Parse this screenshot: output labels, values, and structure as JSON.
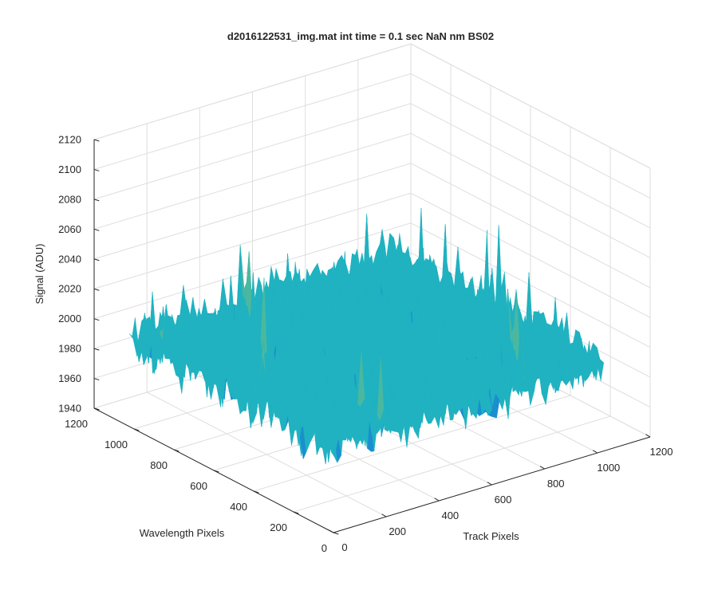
{
  "chart_data": {
    "type": "surface",
    "title": "d2016122531_img.mat int time = 0.1 sec  NaN nm BS02",
    "xlabel": "Track Pixels",
    "ylabel": "Wavelength Pixels",
    "zlabel": "Signal (ADU)",
    "xlim": [
      0,
      1200
    ],
    "ylim": [
      0,
      1200
    ],
    "zlim": [
      1940,
      2120
    ],
    "x_ticks": [
      "0",
      "200",
      "400",
      "600",
      "800",
      "1000",
      "1200"
    ],
    "y_ticks": [
      "0",
      "200",
      "400",
      "600",
      "800",
      "1000",
      "1200"
    ],
    "z_ticks": [
      "1940",
      "1960",
      "1980",
      "2000",
      "2020",
      "2040",
      "2060",
      "2080",
      "2100",
      "2120"
    ],
    "grid": true,
    "data_extent": {
      "x": [
        0,
        1024
      ],
      "y": [
        0,
        1024
      ]
    },
    "mean_signal": 2000,
    "noise_range": [
      1945,
      2085
    ],
    "colormap": [
      "#1f5fd6",
      "#1a8fd0",
      "#20b2c0",
      "#4ab8a0",
      "#8cc070",
      "#c6c85a"
    ]
  }
}
